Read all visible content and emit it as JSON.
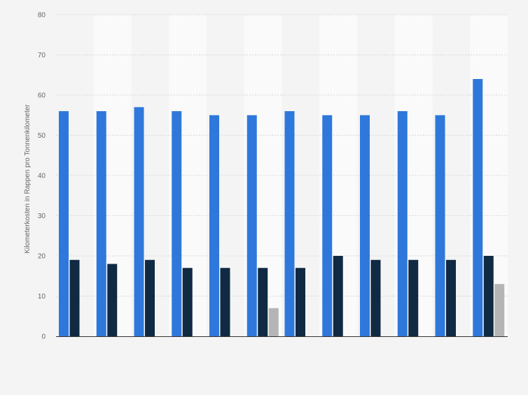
{
  "chart_data": {
    "type": "bar",
    "title": "",
    "xlabel": "",
    "ylabel": "Kilometerkosten in Rappen pro Tonnenkilometer",
    "ylim": [
      0,
      80
    ],
    "yticks": [
      0,
      10,
      20,
      30,
      40,
      50,
      60,
      70,
      80
    ],
    "grid": true,
    "legend": "none",
    "categories": [
      "",
      "",
      "",
      "",
      "",
      "",
      "",
      "",
      "",
      "",
      "",
      ""
    ],
    "series": [
      {
        "color": "#2f78db",
        "values": [
          56,
          56,
          57,
          56,
          55,
          55,
          56,
          55,
          55,
          56,
          55,
          64
        ]
      },
      {
        "color": "#0f2a42",
        "values": [
          19,
          18,
          19,
          17,
          17,
          17,
          17,
          20,
          19,
          19,
          19,
          20
        ]
      },
      {
        "color": "#b5b5b5",
        "values": [
          null,
          null,
          null,
          null,
          null,
          7,
          null,
          null,
          null,
          null,
          null,
          13
        ]
      }
    ]
  },
  "colors": {
    "background": "#f4f4f4",
    "band_light": "#fafafa",
    "band_dark": "#f4f4f4",
    "grid": "#d7d7d7",
    "axis": "#333333",
    "tick_text": "#666666"
  }
}
